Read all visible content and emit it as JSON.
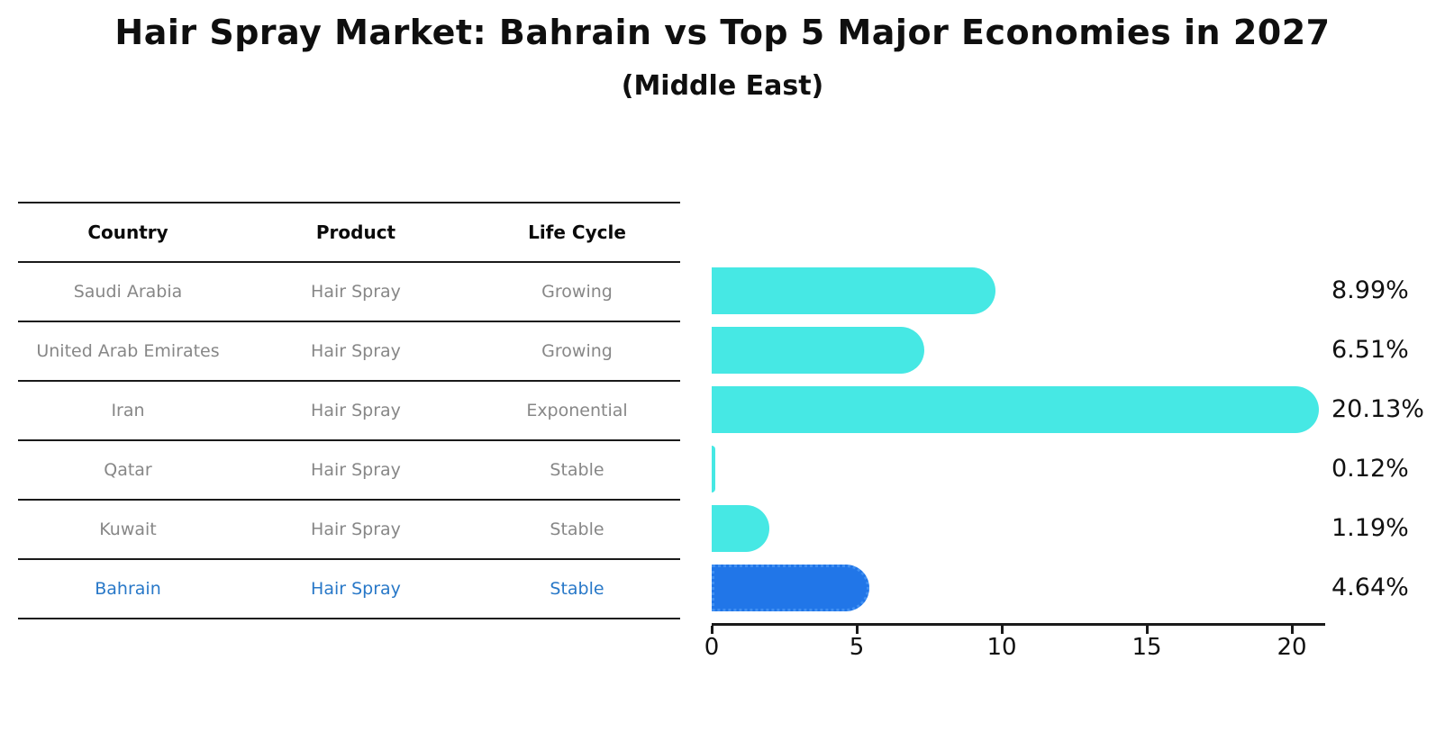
{
  "title": "Hair Spray Market: Bahrain vs Top 5 Major Economies in 2027",
  "subtitle": "(Middle East)",
  "table": {
    "columns": [
      "Country",
      "Product",
      "Life Cycle"
    ],
    "rows": [
      {
        "country": "Saudi Arabia",
        "product": "Hair Spray",
        "life_cycle": "Growing",
        "highlight": false
      },
      {
        "country": "United Arab Emirates",
        "product": "Hair Spray",
        "life_cycle": "Growing",
        "highlight": false
      },
      {
        "country": "Iran",
        "product": "Hair Spray",
        "life_cycle": "Exponential",
        "highlight": false
      },
      {
        "country": "Qatar",
        "product": "Hair Spray",
        "life_cycle": "Stable",
        "highlight": false
      },
      {
        "country": "Kuwait",
        "product": "Hair Spray",
        "life_cycle": "Stable",
        "highlight": false
      },
      {
        "country": "Bahrain",
        "product": "Hair Spray",
        "life_cycle": "Stable",
        "highlight": true
      }
    ]
  },
  "chart_data": {
    "type": "bar",
    "orientation": "horizontal",
    "title": "Hair Spray Market: Bahrain vs Top 5 Major Economies in 2027",
    "subtitle": "(Middle East)",
    "categories": [
      "Saudi Arabia",
      "United Arab Emirates",
      "Iran",
      "Qatar",
      "Kuwait",
      "Bahrain"
    ],
    "values": [
      8.99,
      6.51,
      20.13,
      0.12,
      1.19,
      4.64
    ],
    "value_labels": [
      "8.99%",
      "6.51%",
      "20.13%",
      "0.12%",
      "1.19%",
      "4.64%"
    ],
    "xlabel": "",
    "ylabel": "",
    "xlim": [
      0,
      21.2
    ],
    "xticks": [
      0,
      5,
      10,
      15,
      20
    ],
    "grid": false,
    "legend": false,
    "bar_color": "#46e8e4",
    "highlight_color": "#2176e8",
    "highlight_index": 5,
    "highlight_category": "Bahrain"
  },
  "colors": {
    "bar_cyan": "#46e8e4",
    "bar_blue": "#2176e8",
    "highlight_text_blue": "#2878c8",
    "muted_text_gray": "#878787",
    "line_black": "#1a1a1a"
  }
}
